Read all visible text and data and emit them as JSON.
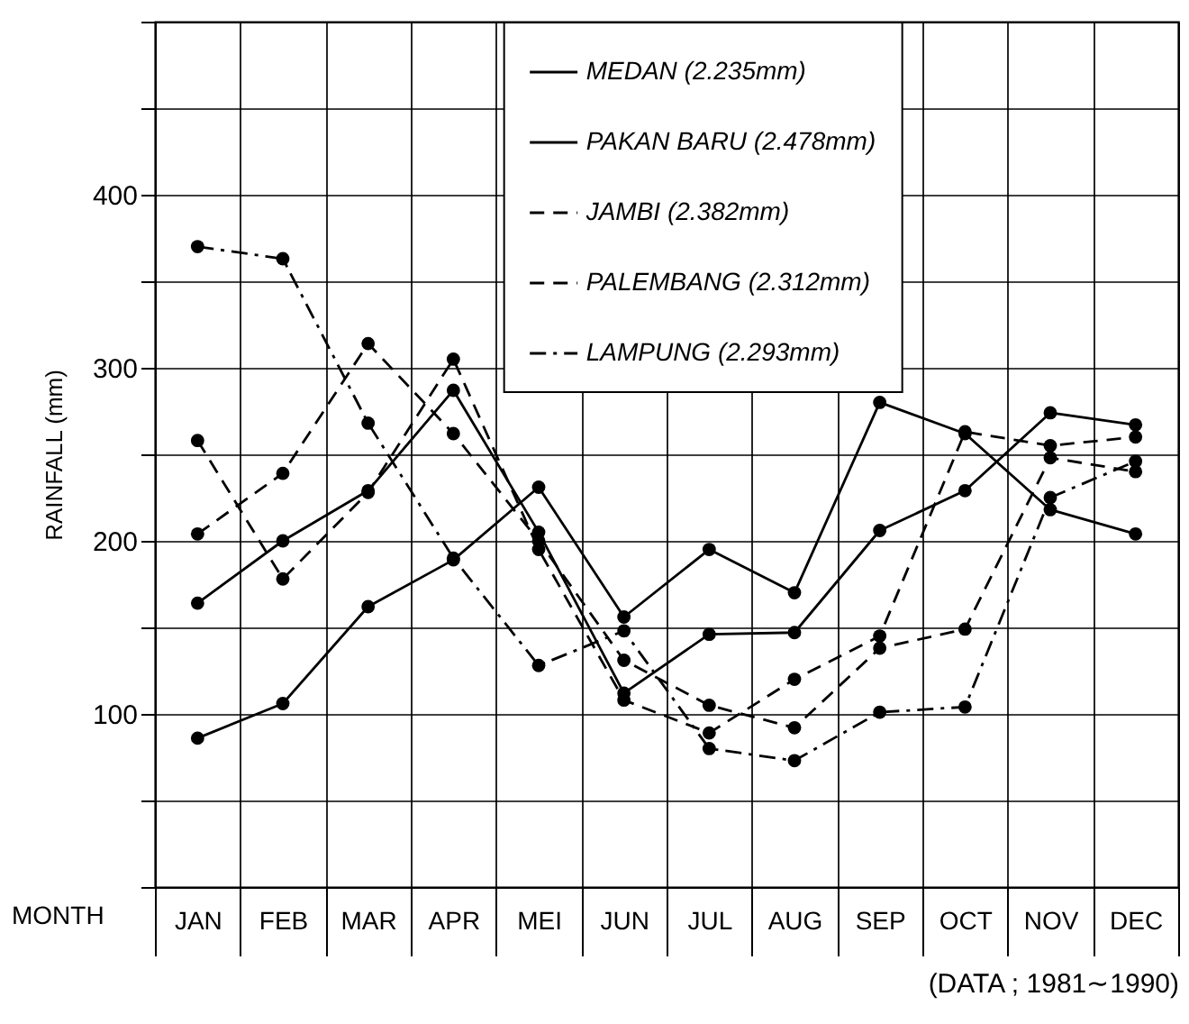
{
  "chart_data": {
    "type": "line",
    "ylabel": "RAINFALL (mm)",
    "xlabel": "MONTH",
    "categories": [
      "JAN",
      "FEB",
      "MAR",
      "APR",
      "MEI",
      "JUN",
      "JUL",
      "AUG",
      "SEP",
      "OCT",
      "NOV",
      "DEC"
    ],
    "ylim": [
      0,
      500
    ],
    "yticks": [
      {
        "value": 0,
        "label": null
      },
      {
        "value": 50,
        "label": null
      },
      100,
      {
        "value": 150,
        "label": null
      },
      200,
      {
        "value": 250,
        "label": null
      },
      300,
      {
        "value": 350,
        "label": null
      },
      400,
      {
        "value": 450,
        "label": null
      },
      {
        "value": 500,
        "label": null
      }
    ],
    "grid": true,
    "legend": "top right",
    "marker": "circle",
    "annotations": [
      "(DATA ; 1981∼1990)"
    ],
    "series": [
      {
        "name": "MEDAN (2.235mm)",
        "color": "#000000",
        "line_style": "solid",
        "values": [
          86,
          106,
          162,
          189,
          231,
          156,
          195,
          170,
          280,
          262,
          218,
          204
        ]
      },
      {
        "name": "PAKAN BARU (2.478mm)",
        "color": "#000000",
        "line_style": "solid",
        "values": [
          164,
          200,
          229,
          287,
          205,
          112,
          146,
          147,
          206,
          229,
          274,
          267
        ]
      },
      {
        "name": "JAMBI (2.382mm)",
        "color": "#000000",
        "line_style": "dashed",
        "values": [
          258,
          178,
          228,
          305,
          195,
          108,
          89,
          120,
          145,
          263,
          255,
          260
        ]
      },
      {
        "name": "PALEMBANG (2.312mm)",
        "color": "#000000",
        "line_style": "dashed",
        "values": [
          204,
          239,
          314,
          262,
          200,
          131,
          105,
          92,
          138,
          149,
          248,
          240
        ]
      },
      {
        "name": "LAMPUNG (2.293mm)",
        "color": "#000000",
        "line_style": "dashdot",
        "values": [
          370,
          363,
          268,
          190,
          128,
          148,
          80,
          73,
          101,
          104,
          225,
          246
        ]
      }
    ]
  }
}
